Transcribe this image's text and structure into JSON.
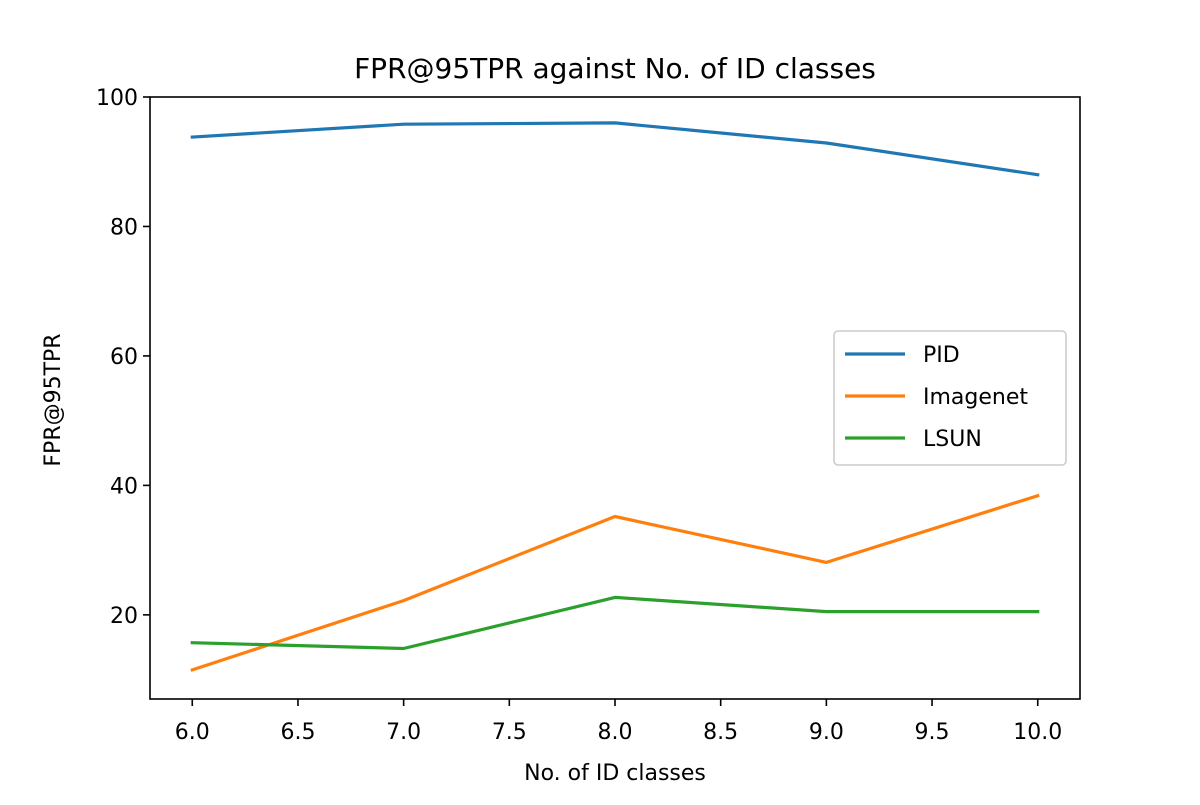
{
  "chart_data": {
    "type": "line",
    "title": "FPR@95TPR against No. of ID classes",
    "xlabel": "No. of ID classes",
    "ylabel": "FPR@95TPR",
    "xlim": [
      5.8,
      10.2
    ],
    "ylim": [
      7.0,
      100.0
    ],
    "xticks": [
      6.0,
      6.5,
      7.0,
      7.5,
      8.0,
      8.5,
      9.0,
      9.5,
      10.0
    ],
    "xtick_labels": [
      "6.0",
      "6.5",
      "7.0",
      "7.5",
      "8.0",
      "8.5",
      "9.0",
      "9.5",
      "10.0"
    ],
    "yticks": [
      20,
      40,
      60,
      80,
      100
    ],
    "ytick_labels": [
      "20",
      "40",
      "60",
      "80",
      "100"
    ],
    "grid": false,
    "legend_position": "center-right",
    "x": [
      6,
      7,
      8,
      9,
      10
    ],
    "series": [
      {
        "name": "PID",
        "color": "#1f77b4",
        "values": [
          93.8,
          95.8,
          96.0,
          92.9,
          88.0
        ]
      },
      {
        "name": "Imagenet",
        "color": "#ff7f0e",
        "values": [
          11.5,
          22.2,
          35.2,
          28.1,
          38.4
        ]
      },
      {
        "name": "LSUN",
        "color": "#2ca02c",
        "values": [
          15.7,
          14.8,
          22.7,
          20.5,
          20.5
        ]
      }
    ]
  }
}
